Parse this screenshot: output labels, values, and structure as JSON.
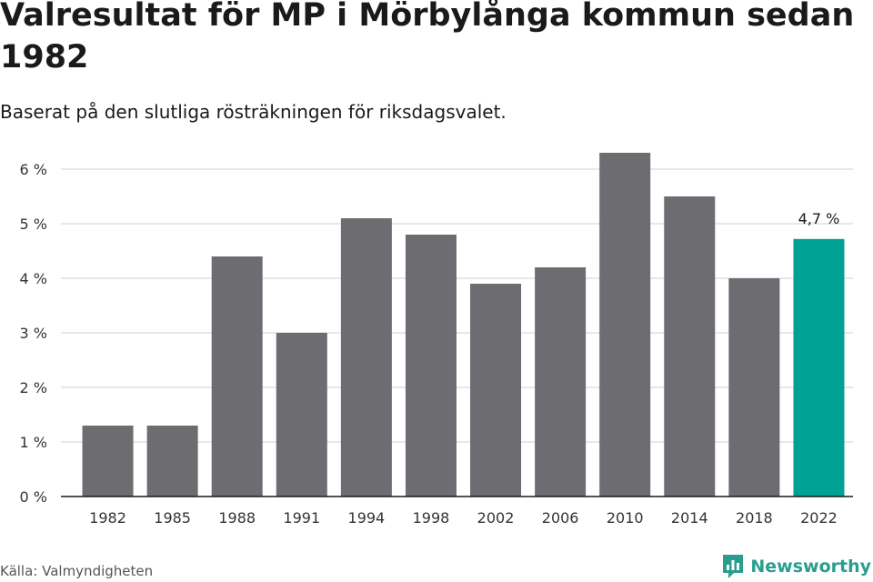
{
  "title": "Valresultat för MP i Mörbylånga kommun sedan 1982",
  "subtitle": "Baserat på den slutliga rösträkningen för riksdagsvalet.",
  "source": "Källa: Valmyndigheten",
  "brand": {
    "name": "Newsworthy",
    "icon": "newsworthy-logo-icon",
    "color": "#2a9d8f"
  },
  "colors": {
    "bar": "#6d6c71",
    "highlight": "#00a195",
    "grid": "#d9d9d9",
    "axis": "#1a1a1a"
  },
  "chart_data": {
    "type": "bar",
    "categories": [
      "1982",
      "1985",
      "1988",
      "1991",
      "1994",
      "1998",
      "2002",
      "2006",
      "2010",
      "2014",
      "2018",
      "2022"
    ],
    "values": [
      1.3,
      1.3,
      4.4,
      3.0,
      5.1,
      4.8,
      3.9,
      4.2,
      6.3,
      5.5,
      4.0,
      4.72
    ],
    "y_ticks": [
      "0 %",
      "1 %",
      "2 %",
      "3 %",
      "4 %",
      "5 %",
      "6 %"
    ],
    "ylim": [
      0,
      6
    ],
    "grid": true,
    "highlight_index": 11,
    "annotation": {
      "index": 11,
      "text": "4,7 %"
    }
  }
}
